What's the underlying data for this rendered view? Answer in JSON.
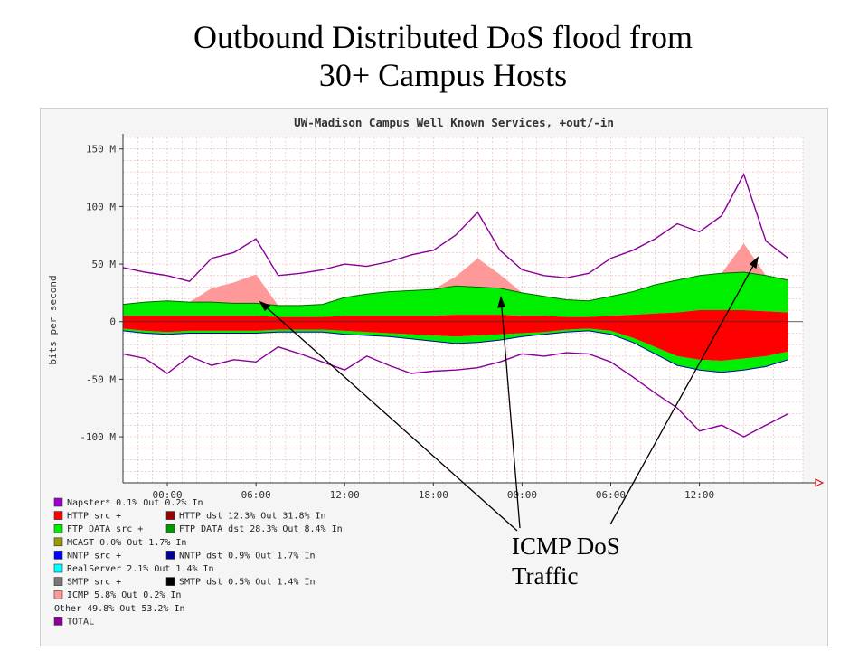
{
  "slide": {
    "title_line1": "Outbound Distributed DoS flood from",
    "title_line2": "30+ Campus Hosts"
  },
  "annotation": {
    "line1": "ICMP DoS",
    "line2": "Traffic"
  },
  "chart_data": {
    "type": "area",
    "title": "UW-Madison Campus Well Known Services, +out/-in",
    "ylabel": "bits per second",
    "xlabel": "",
    "ylim": [
      -140,
      160
    ],
    "yticks": [
      "150 M",
      "100 M",
      "50 M",
      "0",
      "-50 M",
      "-100 M"
    ],
    "ytick_values": [
      150,
      100,
      50,
      0,
      -50,
      -100
    ],
    "xticks": [
      "00:00",
      "06:00",
      "12:00",
      "18:00",
      "00:00",
      "06:00",
      "12:00"
    ],
    "xtick_hours": [
      0,
      6,
      12,
      18,
      24,
      30,
      36
    ],
    "xlim_hours": [
      -3,
      43
    ],
    "grid": true,
    "colors": {
      "napster": "#9900cc",
      "http_src": "#ff0000",
      "http_dst": "#990000",
      "ftp_data_src": "#00ee00",
      "ftp_data_dst": "#009900",
      "mcast": "#999900",
      "nntp_src": "#0000ff",
      "nntp_dst": "#000099",
      "realserver": "#00ffff",
      "smtp_src": "#777777",
      "smtp_dst": "#000000",
      "icmp": "#ff9999",
      "total": "#880099"
    },
    "legend": [
      {
        "color": "#9900cc",
        "text": "Napster*  0.1% Out  0.2% In"
      },
      {
        "color": "#ff0000",
        "text": "HTTP src     +",
        "color2": "#990000",
        "text2": "HTTP dst      12.3% Out  31.8% In"
      },
      {
        "color": "#00ee00",
        "text": "FTP DATA src +",
        "color2": "#009900",
        "text2": "FTP DATA dst  28.3% Out   8.4% In"
      },
      {
        "color": "#999900",
        "text": "MCAST  0.0% Out  1.7% In"
      },
      {
        "color": "#0000ff",
        "text": "NNTP src     +",
        "color2": "#000099",
        "text2": "NNTP dst       0.9% Out   1.7% In"
      },
      {
        "color": "#00ffff",
        "text": "RealServer  2.1% Out  1.4% In"
      },
      {
        "color": "#777777",
        "text": "SMTP src     +",
        "color2": "#000000",
        "text2": "SMTP dst       0.5% Out   1.4% In"
      },
      {
        "color": "#ff9999",
        "text": "ICMP  5.8% Out  0.2% In"
      },
      {
        "color": null,
        "text": "Other 49.8% Out  53.2% In"
      },
      {
        "color": "#880099",
        "text": "TOTAL"
      }
    ],
    "x_hours": [
      -3,
      -1.5,
      0,
      1.5,
      3,
      4.5,
      6,
      7.5,
      9,
      10.5,
      12,
      13.5,
      15,
      16.5,
      18,
      19.5,
      21,
      22.5,
      24,
      25.5,
      27,
      28.5,
      30,
      31.5,
      33,
      34.5,
      36,
      37.5,
      39,
      40.5,
      42
    ],
    "series": [
      {
        "key": "http_out",
        "values": [
          5,
          5,
          5,
          5,
          5,
          5,
          5,
          4,
          4,
          4,
          5,
          5,
          5,
          5,
          5,
          6,
          6,
          6,
          5,
          5,
          4,
          4,
          5,
          6,
          7,
          8,
          10,
          10,
          10,
          9,
          8
        ]
      },
      {
        "key": "ftp_out",
        "values": [
          10,
          12,
          13,
          12,
          12,
          11,
          11,
          10,
          10,
          11,
          16,
          19,
          21,
          22,
          23,
          25,
          24,
          23,
          20,
          17,
          15,
          14,
          17,
          20,
          25,
          28,
          30,
          32,
          33,
          31,
          28
        ]
      },
      {
        "key": "icmp_out",
        "values": [
          0,
          0,
          0,
          0,
          12,
          18,
          25,
          0,
          0,
          0,
          0,
          0,
          0,
          0,
          0,
          8,
          25,
          12,
          0,
          0,
          0,
          0,
          0,
          0,
          0,
          0,
          0,
          0,
          25,
          0,
          0
        ]
      },
      {
        "key": "http_in",
        "values": [
          -6,
          -8,
          -9,
          -8,
          -8,
          -8,
          -8,
          -7,
          -7,
          -7,
          -8,
          -9,
          -10,
          -11,
          -12,
          -13,
          -12,
          -11,
          -10,
          -9,
          -7,
          -6,
          -8,
          -14,
          -22,
          -30,
          -33,
          -34,
          -32,
          -30,
          -26
        ]
      },
      {
        "key": "ftp_in",
        "values": [
          -2,
          -2,
          -2,
          -2,
          -2,
          -2,
          -2,
          -2,
          -2,
          -2,
          -3,
          -3,
          -3,
          -4,
          -5,
          -6,
          -6,
          -5,
          -3,
          -2,
          -2,
          -2,
          -3,
          -4,
          -6,
          -8,
          -9,
          -10,
          -10,
          -9,
          -7
        ]
      },
      {
        "key": "total_out",
        "values": [
          47,
          43,
          40,
          35,
          55,
          60,
          72,
          40,
          42,
          45,
          50,
          48,
          52,
          58,
          62,
          75,
          95,
          62,
          45,
          40,
          38,
          42,
          55,
          62,
          72,
          85,
          78,
          92,
          128,
          70,
          55
        ]
      },
      {
        "key": "total_in",
        "values": [
          -28,
          -32,
          -45,
          -30,
          -38,
          -33,
          -35,
          -22,
          -28,
          -35,
          -42,
          -30,
          -38,
          -45,
          -43,
          -42,
          -40,
          -35,
          -28,
          -30,
          -27,
          -28,
          -35,
          -48,
          -62,
          -75,
          -95,
          -90,
          -100,
          -90,
          -80
        ]
      }
    ]
  }
}
